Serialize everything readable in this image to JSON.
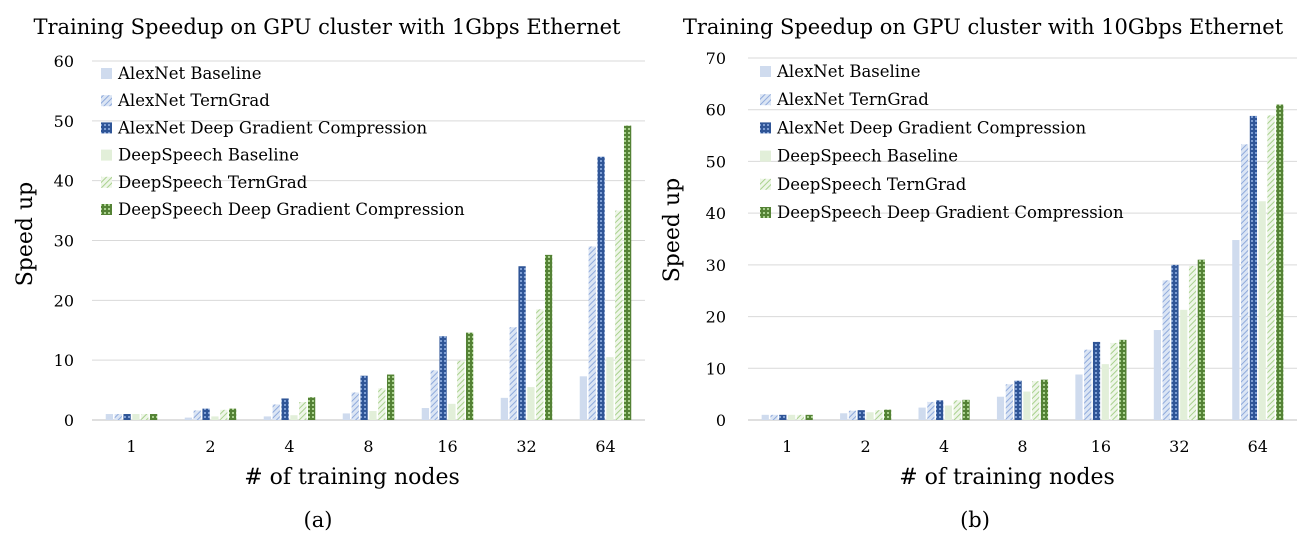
{
  "colors": {
    "alexnet_baseline": "#cfdbee",
    "alexnet_terngrad": "#8faadc",
    "alexnet_dgc": "#2f5597",
    "deepspeech_baseline": "#e2efd9",
    "deepspeech_terngrad": "#a9d18e",
    "deepspeech_dgc": "#548235"
  },
  "chart_data": [
    {
      "type": "bar",
      "title": "Training Speedup on GPU cluster with 1Gbps Ethernet",
      "xlabel": "# of training nodes",
      "ylabel": "Speed up",
      "caption": "(a)",
      "categories": [
        "1",
        "2",
        "4",
        "8",
        "16",
        "32",
        "64"
      ],
      "ylim": [
        0,
        60
      ],
      "yticks": [
        "0",
        "10",
        "20",
        "30",
        "40",
        "50",
        "60"
      ],
      "grid": true,
      "legend_position": "top-left",
      "series": [
        {
          "name": "AlexNet Baseline",
          "values": [
            1,
            0.4,
            0.6,
            1.1,
            2.0,
            3.7,
            7.3
          ]
        },
        {
          "name": "AlexNet TernGrad",
          "values": [
            1,
            1.6,
            2.6,
            4.6,
            8.3,
            15.5,
            29.0
          ]
        },
        {
          "name": "AlexNet Deep Gradient Compression",
          "values": [
            1,
            1.9,
            3.6,
            7.4,
            14.0,
            25.7,
            44.0
          ]
        },
        {
          "name": "DeepSpeech Baseline",
          "values": [
            1,
            0.6,
            0.8,
            1.5,
            2.7,
            5.5,
            10.5
          ]
        },
        {
          "name": "DeepSpeech TernGrad",
          "values": [
            1,
            1.7,
            3.0,
            5.3,
            9.9,
            18.5,
            35.0
          ]
        },
        {
          "name": "DeepSpeech Deep Gradient Compression",
          "values": [
            1,
            1.9,
            3.8,
            7.6,
            14.6,
            27.6,
            49.2
          ]
        }
      ]
    },
    {
      "type": "bar",
      "title": "Training Speedup on GPU cluster with 10Gbps Ethernet",
      "xlabel": "# of training nodes",
      "ylabel": "Speed up",
      "caption": "(b)",
      "categories": [
        "1",
        "2",
        "4",
        "8",
        "16",
        "32",
        "64"
      ],
      "ylim": [
        0,
        70
      ],
      "yticks": [
        "0",
        "10",
        "20",
        "30",
        "40",
        "50",
        "60",
        "70"
      ],
      "grid": true,
      "legend_position": "top-left",
      "series": [
        {
          "name": "AlexNet Baseline",
          "values": [
            1,
            1.3,
            2.4,
            4.5,
            8.8,
            17.4,
            34.8
          ]
        },
        {
          "name": "AlexNet TernGrad",
          "values": [
            1,
            1.8,
            3.5,
            6.9,
            13.6,
            27.0,
            53.3
          ]
        },
        {
          "name": "AlexNet Deep Gradient Compression",
          "values": [
            1,
            1.9,
            3.8,
            7.6,
            15.1,
            30.0,
            58.8
          ]
        },
        {
          "name": "DeepSpeech Baseline",
          "values": [
            1,
            1.5,
            2.8,
            5.5,
            10.8,
            21.3,
            42.3
          ]
        },
        {
          "name": "DeepSpeech TernGrad",
          "values": [
            1,
            1.9,
            3.8,
            7.5,
            14.9,
            29.8,
            58.9
          ]
        },
        {
          "name": "DeepSpeech Deep Gradient Compression",
          "values": [
            1,
            2.0,
            3.9,
            7.8,
            15.5,
            31.0,
            61.0
          ]
        }
      ]
    }
  ]
}
